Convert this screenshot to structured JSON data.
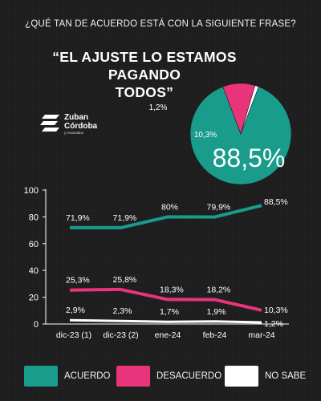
{
  "question": "¿QUÉ TAN DE ACUERDO ESTÁ CON LA SIGUIENTE FRASE?",
  "quote_line1": "“EL AJUSTE LO ESTAMOS PAGANDO",
  "quote_line2": "TODOS”",
  "logo": {
    "line1": "Zuban",
    "line2": "Córdoba",
    "sub": "y Asociados"
  },
  "colors": {
    "acuerdo": "#1a9c8c",
    "desacuerdo": "#e9347c",
    "no_sabe": "#ffffff",
    "background": "#1c1c1c"
  },
  "chart_data": [
    {
      "type": "pie",
      "slices": [
        {
          "name": "ACUERDO",
          "value": 88.5,
          "label": "88,5%"
        },
        {
          "name": "DESACUERDO",
          "value": 10.3,
          "label": "10,3%"
        },
        {
          "name": "NO SABE",
          "value": 1.2,
          "label": "1,2%"
        }
      ]
    },
    {
      "type": "line",
      "categories": [
        "dic-23 (1)",
        "dic-23 (2)",
        "ene-24",
        "feb-24",
        "mar-24"
      ],
      "yticks": [
        "0",
        "20",
        "40",
        "60",
        "80",
        "100"
      ],
      "ylim": [
        0,
        100
      ],
      "grid": false,
      "series": [
        {
          "name": "ACUERDO",
          "values": [
            71.9,
            71.9,
            80,
            79.9,
            88.5
          ],
          "labels": [
            "71,9%",
            "71,9%",
            "80%",
            "79,9%",
            "88,5%"
          ]
        },
        {
          "name": "DESACUERDO",
          "values": [
            25.3,
            25.8,
            18.3,
            18.2,
            10.3
          ],
          "labels": [
            "25,3%",
            "25,8%",
            "18,3%",
            "18,2%",
            "10,3%"
          ]
        },
        {
          "name": "NO SABE",
          "values": [
            2.9,
            2.3,
            1.7,
            1.9,
            1.2
          ],
          "labels": [
            "2,9%",
            "2,3%",
            "1,7%",
            "1,9%",
            "1,2%"
          ]
        }
      ],
      "legend": "bottom"
    }
  ]
}
